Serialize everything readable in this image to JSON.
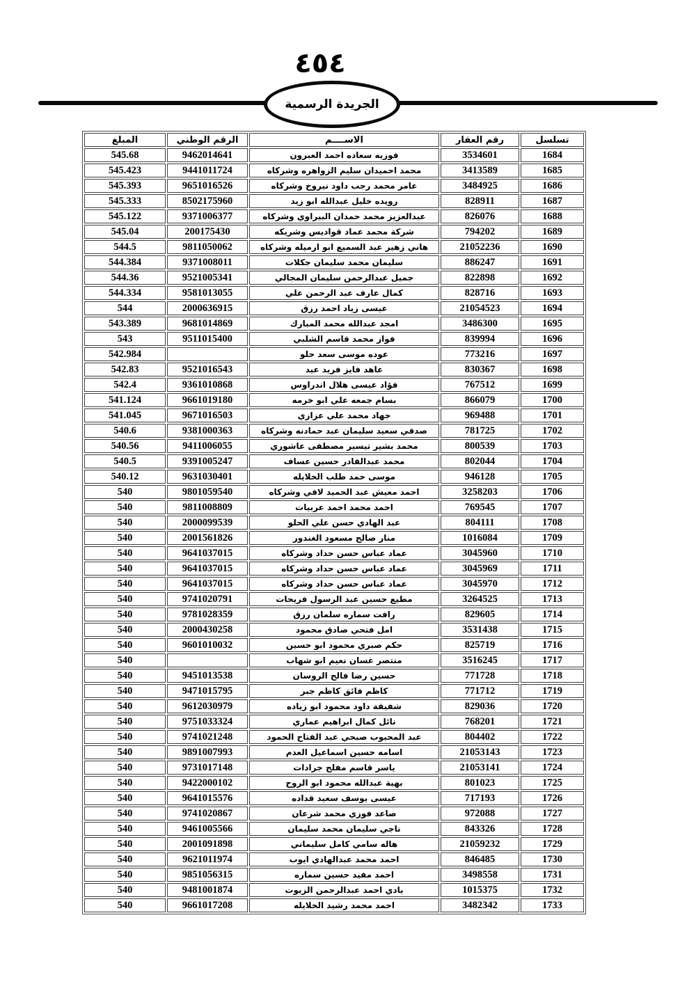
{
  "page": {
    "number_arabic": "٤٥٤",
    "gazette_title": "الجريدة الرسمية"
  },
  "table": {
    "headers": {
      "serial": "تسلسل",
      "property_number": "رقم العقار",
      "name": "الاســــم",
      "national_number": "الرقم الوطني",
      "amount": "المبلغ"
    },
    "rows": [
      {
        "serial": "1684",
        "property_number": "3534601",
        "name": "فوزيه سعاده احمد العبرون",
        "national_number": "9462014641",
        "amount": "545.68"
      },
      {
        "serial": "1685",
        "property_number": "3413589",
        "name": "محمد احميدان سليم الزواهره وشركاه",
        "national_number": "9441011724",
        "amount": "545.423"
      },
      {
        "serial": "1686",
        "property_number": "3484925",
        "name": "عامر محمد رجب داود نيروخ وشركاه",
        "national_number": "9651016526",
        "amount": "545.393"
      },
      {
        "serial": "1687",
        "property_number": "828911",
        "name": "رويده خليل عبدالله ابو زيد",
        "national_number": "8502175960",
        "amount": "545.333"
      },
      {
        "serial": "1688",
        "property_number": "826076",
        "name": "عبدالعزيز محمد حمدان البيراوي وشركاه",
        "national_number": "9371006377",
        "amount": "545.122"
      },
      {
        "serial": "1689",
        "property_number": "794202",
        "name": "شركة محمد عماد قواديس وشريكه",
        "national_number": "200175430",
        "amount": "545.04"
      },
      {
        "serial": "1690",
        "property_number": "21052236",
        "name": "هاني زهير عبد السميع ابو ارميله وشركاه",
        "national_number": "9811050062",
        "amount": "544.5"
      },
      {
        "serial": "1691",
        "property_number": "886247",
        "name": "سليمان محمد سليمان جكلات",
        "national_number": "9371008011",
        "amount": "544.384"
      },
      {
        "serial": "1692",
        "property_number": "822898",
        "name": "جميل عبدالرحمن سليمان المجالي",
        "national_number": "9521005341",
        "amount": "544.36"
      },
      {
        "serial": "1693",
        "property_number": "828716",
        "name": "كمال عارف عبد الرحمن علي",
        "national_number": "9581013055",
        "amount": "544.334"
      },
      {
        "serial": "1694",
        "property_number": "21054523",
        "name": "عيسى زياد احمد رزق",
        "national_number": "2000636915",
        "amount": "544"
      },
      {
        "serial": "1695",
        "property_number": "3486300",
        "name": "امجد عبدالله محمد المبارك",
        "national_number": "9681014869",
        "amount": "543.389"
      },
      {
        "serial": "1696",
        "property_number": "839994",
        "name": "فواز محمد قاسم الشلبي",
        "national_number": "9511015400",
        "amount": "543"
      },
      {
        "serial": "1697",
        "property_number": "773216",
        "name": "عوده موسى سعد حلو",
        "national_number": "",
        "amount": "542.984"
      },
      {
        "serial": "1698",
        "property_number": "830367",
        "name": "عاهد فايز فريد عيد",
        "national_number": "9521016543",
        "amount": "542.83"
      },
      {
        "serial": "1699",
        "property_number": "767512",
        "name": "فؤاد عيسى هلال اندراوس",
        "national_number": "9361010868",
        "amount": "542.4"
      },
      {
        "serial": "1700",
        "property_number": "866079",
        "name": "بسام جمعه علي ابو خرمه",
        "national_number": "9661019180",
        "amount": "541.124"
      },
      {
        "serial": "1701",
        "property_number": "969488",
        "name": "جهاد محمد علي عزازي",
        "national_number": "9671016503",
        "amount": "541.045"
      },
      {
        "serial": "1702",
        "property_number": "781725",
        "name": "صدقي سعيد سليمان عبد حمادنه وشركاه",
        "national_number": "9381000363",
        "amount": "540.6"
      },
      {
        "serial": "1703",
        "property_number": "800539",
        "name": "محمد بشير تيسير مصطفى عاشوري",
        "national_number": "9411006055",
        "amount": "540.56"
      },
      {
        "serial": "1704",
        "property_number": "802044",
        "name": "محمد عبدالقادر حسين عساف",
        "national_number": "9391005247",
        "amount": "540.5"
      },
      {
        "serial": "1705",
        "property_number": "946128",
        "name": "موسى حمد طلب الخلايله",
        "national_number": "9631030401",
        "amount": "540.12"
      },
      {
        "serial": "1706",
        "property_number": "3258203",
        "name": "احمد معيش عبد الحميد لافي وشركاه",
        "national_number": "9801059540",
        "amount": "540"
      },
      {
        "serial": "1707",
        "property_number": "769545",
        "name": "احمد محمد احمد عربيات",
        "national_number": "9811008809",
        "amount": "540"
      },
      {
        "serial": "1708",
        "property_number": "804111",
        "name": "عبد الهادي حسن علي الحلو",
        "national_number": "2000099539",
        "amount": "540"
      },
      {
        "serial": "1709",
        "property_number": "1016084",
        "name": "منار صالح مسعود الغندور",
        "national_number": "2001561826",
        "amount": "540"
      },
      {
        "serial": "1710",
        "property_number": "3045960",
        "name": "عماد عباس حسن حداد وشركاه",
        "national_number": "9641037015",
        "amount": "540"
      },
      {
        "serial": "1711",
        "property_number": "3045969",
        "name": "عماد عباس حسن حداد وشركاه",
        "national_number": "9641037015",
        "amount": "540"
      },
      {
        "serial": "1712",
        "property_number": "3045970",
        "name": "عماد عباس حسن حداد وشركاه",
        "national_number": "9641037015",
        "amount": "540"
      },
      {
        "serial": "1713",
        "property_number": "3264525",
        "name": "مطيع حسين عبد الرسول فريحات",
        "national_number": "9741020791",
        "amount": "540"
      },
      {
        "serial": "1714",
        "property_number": "829605",
        "name": "رافت سماره سلمان رزق",
        "national_number": "9781028359",
        "amount": "540"
      },
      {
        "serial": "1715",
        "property_number": "3531438",
        "name": "امل فتحي صادق محمود",
        "national_number": "2000430258",
        "amount": "540"
      },
      {
        "serial": "1716",
        "property_number": "825719",
        "name": "حكم صبري محمود ابو حسين",
        "national_number": "9601010032",
        "amount": "540"
      },
      {
        "serial": "1717",
        "property_number": "3516245",
        "name": "منتصر غسان نعيم ابو شهاب",
        "national_number": "",
        "amount": "540"
      },
      {
        "serial": "1718",
        "property_number": "771728",
        "name": "حسين رضا فالح الروسان",
        "national_number": "9451013538",
        "amount": "540"
      },
      {
        "serial": "1719",
        "property_number": "771712",
        "name": "كاظم فائق كاظم جبر",
        "national_number": "9471015795",
        "amount": "540"
      },
      {
        "serial": "1720",
        "property_number": "829036",
        "name": "شفيقة داود محمود ابو زياده",
        "national_number": "9612030979",
        "amount": "540"
      },
      {
        "serial": "1721",
        "property_number": "768201",
        "name": "نائل كمال ابراهيم عماري",
        "national_number": "9751033324",
        "amount": "540"
      },
      {
        "serial": "1722",
        "property_number": "804402",
        "name": "عبد المحبوب صبحي عبد الفتاح الحمود",
        "national_number": "9741021248",
        "amount": "540"
      },
      {
        "serial": "1723",
        "property_number": "21053143",
        "name": "اسامه حسين اسماعيل العدم",
        "national_number": "9891007993",
        "amount": "540"
      },
      {
        "serial": "1724",
        "property_number": "21053141",
        "name": "ياسر قاسم مفلح جرادات",
        "national_number": "9731017148",
        "amount": "540"
      },
      {
        "serial": "1725",
        "property_number": "801023",
        "name": "بهية عبدالله محمود ابو الروح",
        "national_number": "9422000102",
        "amount": "540"
      },
      {
        "serial": "1726",
        "property_number": "717193",
        "name": "عيسى يوسف سعيد قداده",
        "national_number": "9641015576",
        "amount": "540"
      },
      {
        "serial": "1727",
        "property_number": "972088",
        "name": "صاعد فوزي محمد شرعان",
        "national_number": "9741020867",
        "amount": "540"
      },
      {
        "serial": "1728",
        "property_number": "843326",
        "name": "ناجي سليمان محمد سليمان",
        "national_number": "9461005566",
        "amount": "540"
      },
      {
        "serial": "1729",
        "property_number": "21059232",
        "name": "هاله سامي كامل سليماني",
        "national_number": "2001091898",
        "amount": "540"
      },
      {
        "serial": "1730",
        "property_number": "846485",
        "name": "احمد محمد عبدالهادي ايوب",
        "national_number": "9621011974",
        "amount": "540"
      },
      {
        "serial": "1731",
        "property_number": "3498558",
        "name": "احمد مفيد حسين سماره",
        "national_number": "9851056315",
        "amount": "540"
      },
      {
        "serial": "1732",
        "property_number": "1015375",
        "name": "بادي احمد عبدالرحمن الزيوت",
        "national_number": "9481001874",
        "amount": "540"
      },
      {
        "serial": "1733",
        "property_number": "3482342",
        "name": "احمد محمد رشيد الخلايله",
        "national_number": "9661017208",
        "amount": "540"
      }
    ]
  }
}
